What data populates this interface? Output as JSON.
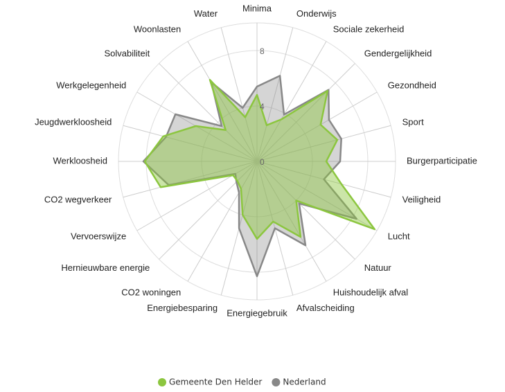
{
  "chart_data": {
    "type": "radar",
    "categories": [
      "Minima",
      "Onderwijs",
      "Sociale zekerheid",
      "Gendergelijkheid",
      "Gezondheid",
      "Sport",
      "Burgerparticipatie",
      "Veiligheid",
      "Lucht",
      "Natuur",
      "Huishoudelijk afval",
      "Afvalscheiding",
      "Energiegebruik",
      "Energiebesparing",
      "CO2 woningen",
      "Hernieuwbare energie",
      "Vervoerswijze",
      "CO2 wegverkeer",
      "Werkloosheid",
      "Jeugdwerkloosheid",
      "Werkgelegenheid",
      "Solvabiliteit",
      "Woonlasten",
      "Water"
    ],
    "series": [
      {
        "name": "Gemeente Den Helder",
        "color": "#8cc63f",
        "values": [
          4.8,
          2.7,
          3.5,
          7.2,
          5.3,
          6.0,
          5.0,
          6.3,
          9.8,
          4.0,
          6.3,
          4.5,
          5.6,
          4.0,
          2.3,
          2.0,
          2.0,
          7.2,
          8.1,
          7.0,
          5.1,
          3.2,
          6.8,
          3.3
        ]
      },
      {
        "name": "Nederland",
        "color": "#888888",
        "values": [
          5.4,
          6.4,
          3.9,
          7.3,
          6.0,
          6.3,
          6.0,
          5.0,
          8.3,
          4.3,
          7.0,
          5.0,
          8.3,
          5.0,
          2.6,
          2.1,
          1.8,
          6.6,
          8.2,
          6.8,
          6.8,
          3.6,
          6.6,
          4.0
        ]
      }
    ],
    "ylim": [
      0,
      10
    ],
    "yticks": [
      0,
      4,
      8
    ],
    "grid": true,
    "legend": "bottom"
  }
}
